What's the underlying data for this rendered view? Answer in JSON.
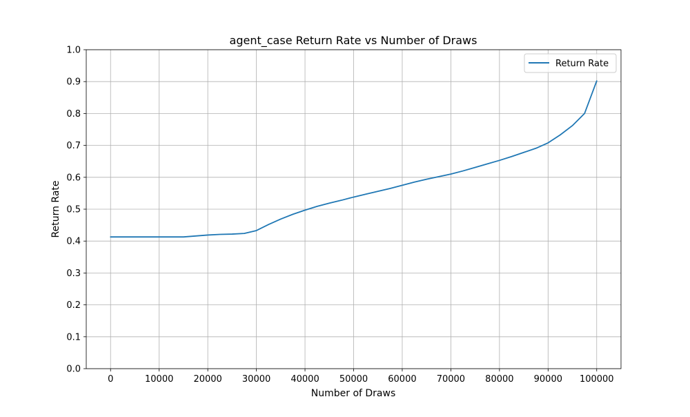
{
  "chart_data": {
    "type": "line",
    "title": "agent_case Return Rate vs Number of Draws",
    "xlabel": "Number of Draws",
    "ylabel": "Return Rate",
    "xlim": [
      -5000,
      105000
    ],
    "ylim": [
      0.0,
      1.0
    ],
    "xticks": [
      0,
      10000,
      20000,
      30000,
      40000,
      50000,
      60000,
      70000,
      80000,
      90000,
      100000
    ],
    "yticks": [
      0.0,
      0.1,
      0.2,
      0.3,
      0.4,
      0.5,
      0.6,
      0.7,
      0.8,
      0.9,
      1.0
    ],
    "xtick_labels": [
      "0",
      "10000",
      "20000",
      "30000",
      "40000",
      "50000",
      "60000",
      "70000",
      "80000",
      "90000",
      "100000"
    ],
    "ytick_labels": [
      "0.0",
      "0.1",
      "0.2",
      "0.3",
      "0.4",
      "0.5",
      "0.6",
      "0.7",
      "0.8",
      "0.9",
      "1.0"
    ],
    "grid": true,
    "legend_position": "top-right",
    "series": [
      {
        "name": "Return Rate",
        "color": "#1f77b4",
        "x": [
          0,
          2500,
          5000,
          7500,
          10000,
          12500,
          15000,
          17500,
          20000,
          22500,
          25000,
          27500,
          30000,
          32500,
          35000,
          37500,
          40000,
          42500,
          45000,
          47500,
          50000,
          52500,
          55000,
          57500,
          60000,
          62500,
          65000,
          67500,
          70000,
          72500,
          75000,
          77500,
          80000,
          82500,
          85000,
          87500,
          90000,
          92500,
          95000,
          97500,
          100000
        ],
        "values": [
          0.413,
          0.413,
          0.413,
          0.413,
          0.413,
          0.413,
          0.413,
          0.416,
          0.419,
          0.421,
          0.422,
          0.424,
          0.433,
          0.452,
          0.469,
          0.484,
          0.497,
          0.509,
          0.519,
          0.528,
          0.538,
          0.547,
          0.556,
          0.565,
          0.575,
          0.585,
          0.594,
          0.602,
          0.61,
          0.62,
          0.631,
          0.642,
          0.653,
          0.665,
          0.678,
          0.691,
          0.708,
          0.733,
          0.762,
          0.8,
          0.902
        ]
      }
    ]
  }
}
